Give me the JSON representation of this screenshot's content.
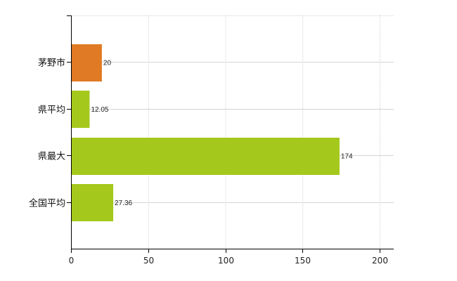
{
  "chart_data": {
    "type": "bar",
    "orientation": "horizontal",
    "categories": [
      "茅野市",
      "県平均",
      "県最大",
      "全国平均"
    ],
    "values": [
      20,
      12.05,
      174,
      27.36
    ],
    "value_labels": [
      "20",
      "12.05",
      "174",
      "27.36"
    ],
    "bar_colors": [
      "#e07a24",
      "#a5c81c",
      "#a5c81c",
      "#a5c81c"
    ],
    "xlim": [
      0,
      200
    ],
    "xticks": [
      0,
      50,
      100,
      150,
      200
    ],
    "xtick_labels": [
      "0",
      "50",
      "100",
      "150",
      "200"
    ],
    "grid": true,
    "legend": false,
    "title": "",
    "xlabel": "",
    "ylabel": ""
  }
}
